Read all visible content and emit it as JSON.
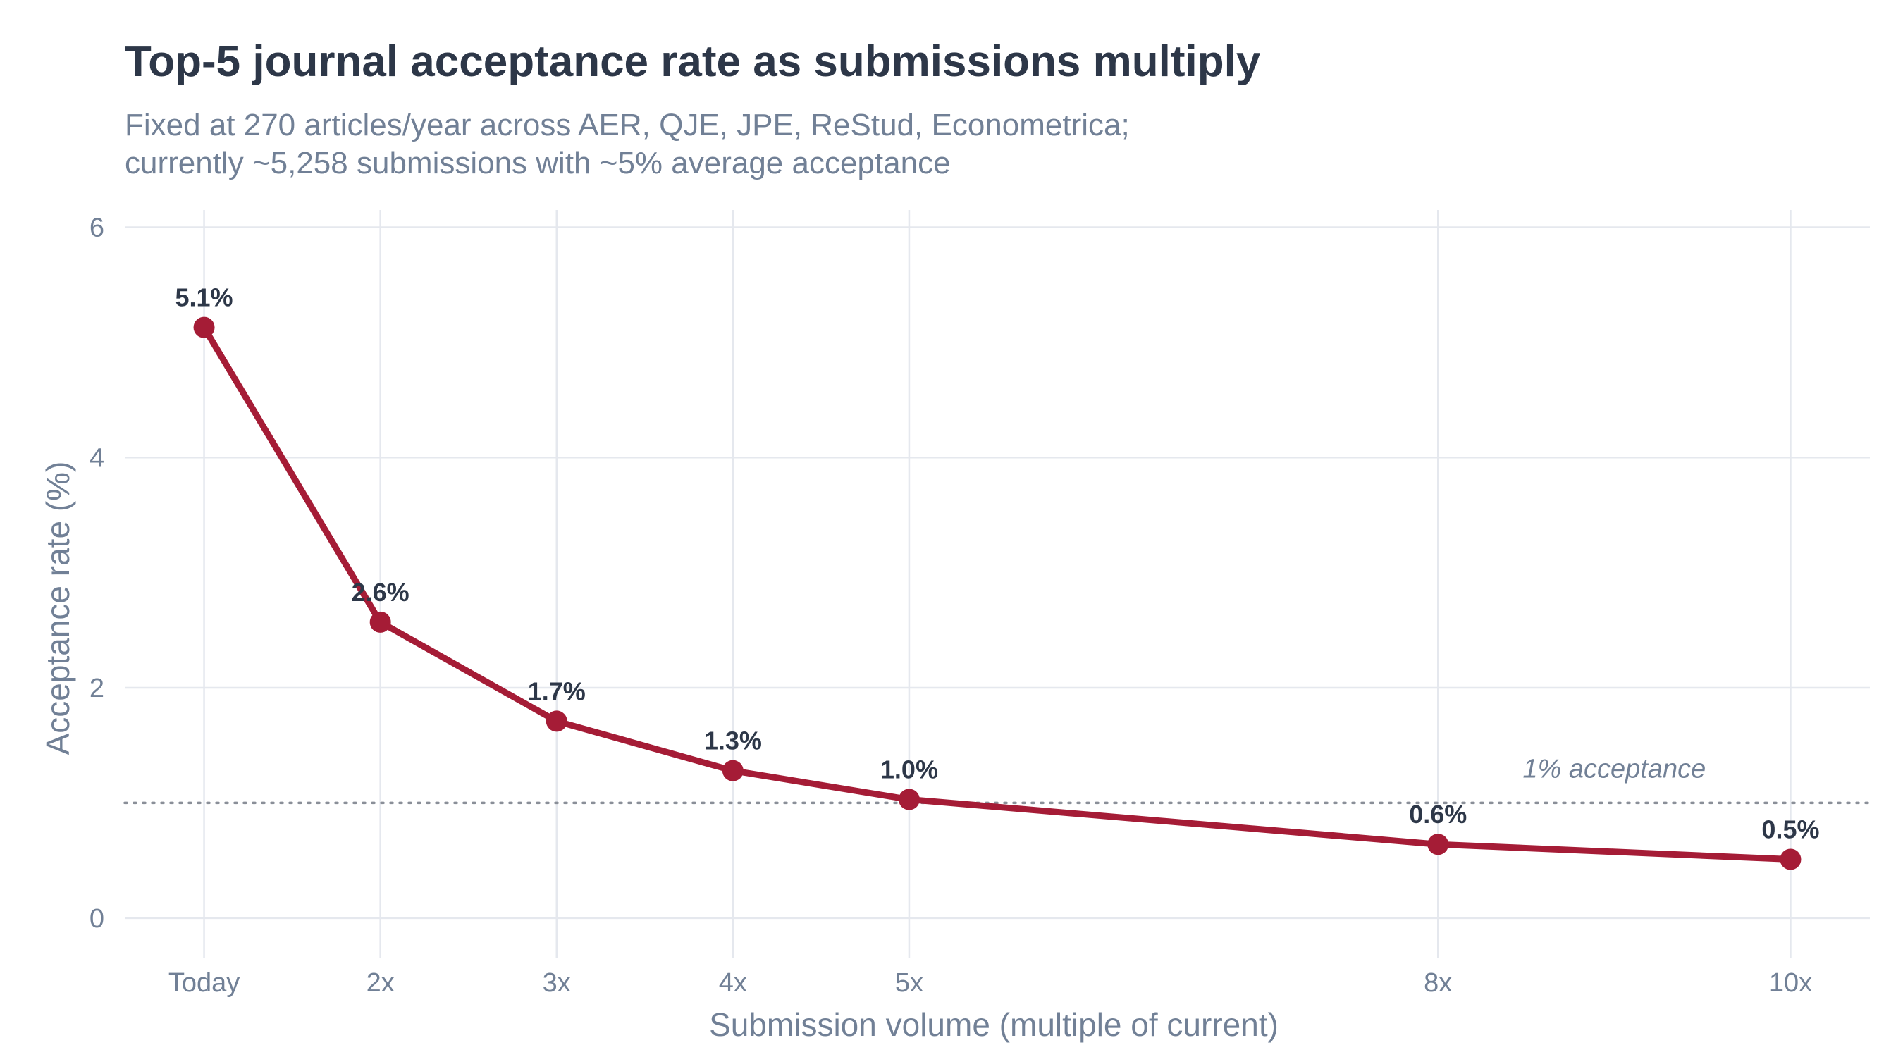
{
  "chart_data": {
    "type": "line",
    "title": "Top-5 journal acceptance rate as submissions multiply",
    "subtitle_lines": [
      "Fixed at 270 articles/year across AER, QJE, JPE, ReStud, Econometrica;",
      "currently ~5,258 submissions with ~5% average acceptance"
    ],
    "xlabel": "Submission volume (multiple of current)",
    "ylabel": "Acceptance rate (%)",
    "x": [
      1,
      2,
      3,
      4,
      5,
      8,
      10
    ],
    "x_tick_labels": [
      "Today",
      "2x",
      "3x",
      "4x",
      "5x",
      "8x",
      "10x"
    ],
    "series": [
      {
        "values": [
          5.13,
          2.57,
          1.71,
          1.28,
          1.03,
          0.64,
          0.51
        ],
        "labels": [
          "5.1%",
          "2.6%",
          "1.7%",
          "1.3%",
          "1.0%",
          "0.6%",
          "0.5%"
        ],
        "color": "#a51c36"
      }
    ],
    "xlim": [
      0.55,
      10.45
    ],
    "ylim": [
      -0.35,
      6.15
    ],
    "y_ticks": [
      0,
      2,
      4,
      6
    ],
    "y_tick_labels": [
      "0",
      "2",
      "4",
      "6"
    ],
    "reference_line": {
      "y": 1,
      "label": "1% acceptance",
      "style": "dotted",
      "color": "#8a8f98"
    },
    "grid": true,
    "legend": "none"
  }
}
